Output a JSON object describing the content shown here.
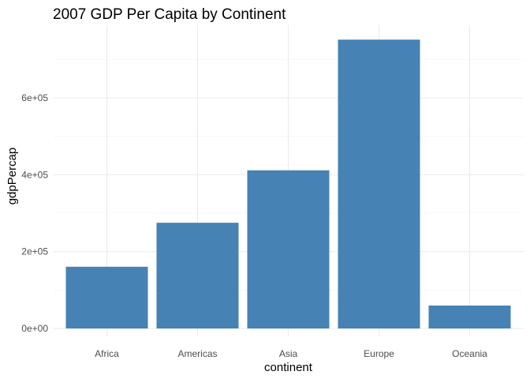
{
  "chart_data": {
    "type": "bar",
    "title": "2007 GDP Per Capita by Continent",
    "xlabel": "continent",
    "ylabel": "gdpPercap",
    "categories": [
      "Africa",
      "Americas",
      "Asia",
      "Europe",
      "Oceania"
    ],
    "values": [
      160629.7,
      275075.8,
      411609.9,
      751634.4,
      59620.4
    ],
    "ylim": [
      0,
      790000
    ],
    "yticks": [
      0,
      200000,
      400000,
      600000
    ],
    "ytick_labels": [
      "0e+00",
      "2e+05",
      "4e+05",
      "6e+05"
    ],
    "bar_color": "#4682B4",
    "grid": true,
    "legend": "none",
    "theme": "minimal"
  }
}
